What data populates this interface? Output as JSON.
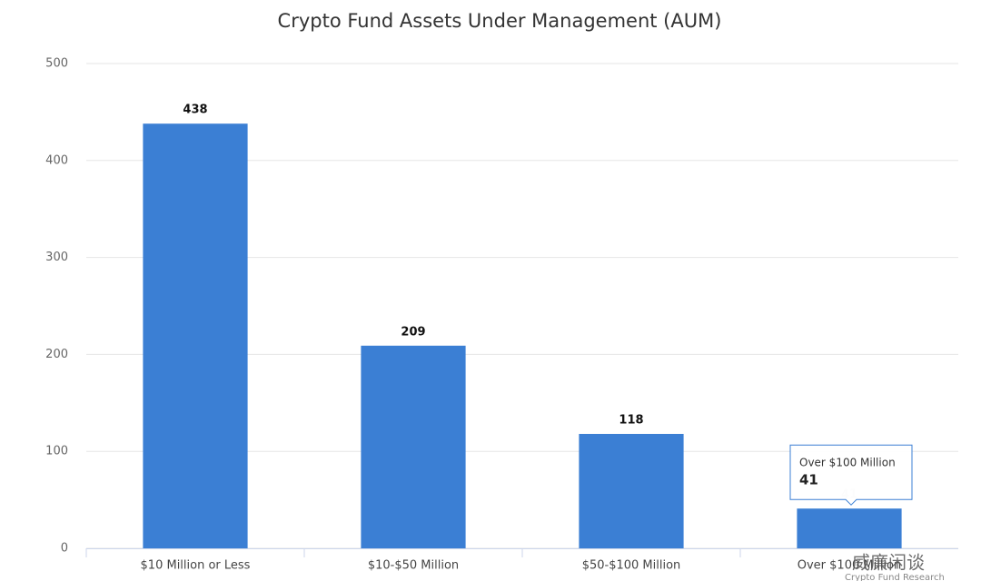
{
  "chart_data": {
    "type": "bar",
    "title": "Crypto Fund Assets Under Management (AUM)",
    "categories": [
      "$10 Million or Less",
      "$10-$50 Million",
      "$50-$100 Million",
      "Over $100 Million"
    ],
    "values": [
      438,
      209,
      118,
      41
    ],
    "color": "#3b7fd4",
    "ylim": [
      0,
      500
    ],
    "yticks": [
      0,
      100,
      200,
      300,
      400,
      500
    ],
    "grid": true,
    "tooltip_index": 3,
    "watermark": "威廉闲谈",
    "source": "Crypto Fund Research"
  }
}
